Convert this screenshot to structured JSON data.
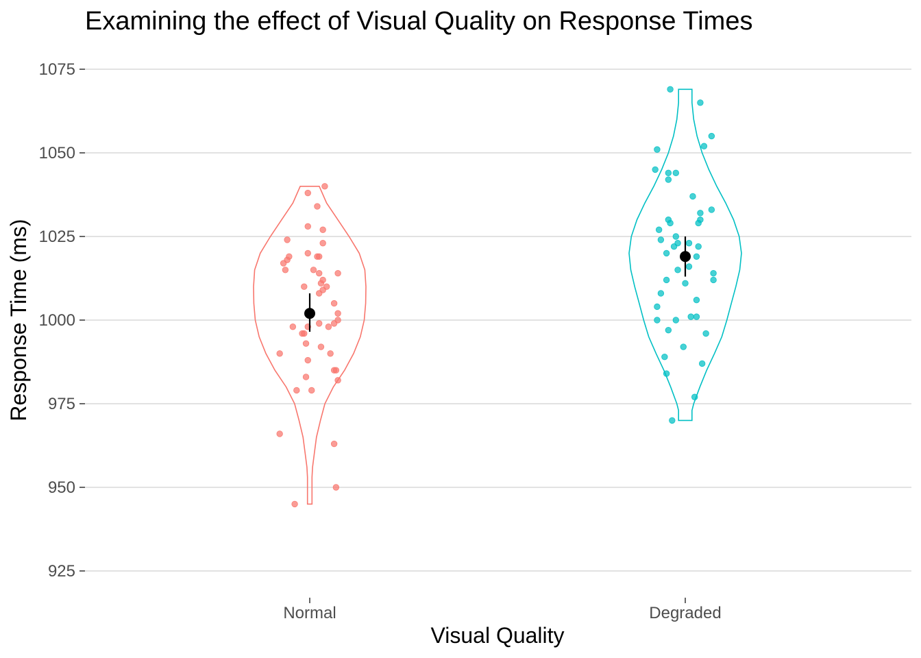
{
  "chart_data": {
    "type": "violin",
    "title": "Examining the effect of Visual Quality on Response Times",
    "xlabel": "Visual Quality",
    "ylabel": "Response Time (ms)",
    "ylim": [
      918,
      1081
    ],
    "yticks": [
      925,
      950,
      975,
      1000,
      1025,
      1050,
      1075
    ],
    "grid": true,
    "legend": "none",
    "categories": [
      "Normal",
      "Degraded"
    ],
    "series": [
      {
        "color": "#F8766D",
        "mean": 1002,
        "ci": [
          996.5,
          1008
        ],
        "violin": [
          [
            945,
            0.04
          ],
          [
            947,
            0.04
          ],
          [
            950,
            0.04
          ],
          [
            953,
            0.04
          ],
          [
            956,
            0.05
          ],
          [
            960,
            0.08
          ],
          [
            965,
            0.12
          ],
          [
            970,
            0.19
          ],
          [
            975,
            0.27
          ],
          [
            980,
            0.42
          ],
          [
            985,
            0.62
          ],
          [
            990,
            0.78
          ],
          [
            995,
            0.9
          ],
          [
            1000,
            0.97
          ],
          [
            1005,
            0.995
          ],
          [
            1010,
            1.0
          ],
          [
            1015,
            0.98
          ],
          [
            1020,
            0.88
          ],
          [
            1025,
            0.7
          ],
          [
            1030,
            0.5
          ],
          [
            1035,
            0.3
          ],
          [
            1040,
            0.17
          ]
        ],
        "points": [
          [
            -0.04,
            945
          ],
          [
            0.04,
            1040
          ],
          [
            -0.005,
            1038
          ],
          [
            0.02,
            1034
          ],
          [
            0.035,
            1027
          ],
          [
            -0.005,
            1028
          ],
          [
            -0.06,
            1024
          ],
          [
            0.035,
            1023
          ],
          [
            -0.005,
            1020
          ],
          [
            -0.055,
            1019
          ],
          [
            -0.06,
            1018
          ],
          [
            -0.07,
            1017
          ],
          [
            0.02,
            1019
          ],
          [
            0.025,
            1019
          ],
          [
            -0.065,
            1015
          ],
          [
            0.01,
            1015
          ],
          [
            0.025,
            1014
          ],
          [
            0.075,
            1014
          ],
          [
            0.035,
            1012
          ],
          [
            0.03,
            1011
          ],
          [
            0.045,
            1010
          ],
          [
            0.035,
            1009
          ],
          [
            -0.015,
            1010
          ],
          [
            0.025,
            1008
          ],
          [
            0.065,
            1005
          ],
          [
            0.075,
            1002
          ],
          [
            0.075,
            1000
          ],
          [
            0.065,
            999
          ],
          [
            0.025,
            999
          ],
          [
            -0.045,
            998
          ],
          [
            -0.005,
            998
          ],
          [
            0.05,
            998
          ],
          [
            -0.015,
            996
          ],
          [
            -0.02,
            996
          ],
          [
            -0.01,
            993
          ],
          [
            0.03,
            992
          ],
          [
            0.055,
            990
          ],
          [
            -0.08,
            990
          ],
          [
            -0.005,
            988
          ],
          [
            0.065,
            985
          ],
          [
            0.07,
            985
          ],
          [
            0.075,
            982
          ],
          [
            -0.01,
            983
          ],
          [
            0.005,
            979
          ],
          [
            -0.035,
            979
          ],
          [
            0.065,
            963
          ],
          [
            -0.08,
            966
          ],
          [
            0.07,
            950
          ]
        ]
      },
      {
        "color": "#00BFC4",
        "mean": 1019,
        "ci": [
          1013,
          1025
        ],
        "violin": [
          [
            970,
            0.12
          ],
          [
            973,
            0.12
          ],
          [
            975,
            0.15
          ],
          [
            980,
            0.26
          ],
          [
            985,
            0.38
          ],
          [
            990,
            0.52
          ],
          [
            995,
            0.65
          ],
          [
            1000,
            0.74
          ],
          [
            1005,
            0.82
          ],
          [
            1010,
            0.9
          ],
          [
            1015,
            0.97
          ],
          [
            1020,
            1.0
          ],
          [
            1025,
            0.96
          ],
          [
            1030,
            0.86
          ],
          [
            1035,
            0.72
          ],
          [
            1040,
            0.56
          ],
          [
            1045,
            0.42
          ],
          [
            1050,
            0.3
          ],
          [
            1055,
            0.21
          ],
          [
            1060,
            0.15
          ],
          [
            1065,
            0.12
          ],
          [
            1069,
            0.12
          ]
        ],
        "points": [
          [
            -0.04,
            1069
          ],
          [
            0.04,
            1065
          ],
          [
            0.07,
            1055
          ],
          [
            0.05,
            1052
          ],
          [
            -0.075,
            1051
          ],
          [
            -0.08,
            1045
          ],
          [
            -0.025,
            1044
          ],
          [
            -0.045,
            1044
          ],
          [
            -0.045,
            1042
          ],
          [
            0.02,
            1037
          ],
          [
            0.07,
            1033
          ],
          [
            0.04,
            1032
          ],
          [
            0.04,
            1030
          ],
          [
            0.035,
            1029
          ],
          [
            -0.045,
            1030
          ],
          [
            -0.04,
            1029
          ],
          [
            -0.07,
            1027
          ],
          [
            -0.025,
            1025
          ],
          [
            -0.065,
            1024
          ],
          [
            -0.02,
            1023
          ],
          [
            0.01,
            1023
          ],
          [
            0.035,
            1022
          ],
          [
            -0.03,
            1022
          ],
          [
            -0.05,
            1020
          ],
          [
            0.03,
            1019
          ],
          [
            0.075,
            1014
          ],
          [
            0.075,
            1012
          ],
          [
            -0.02,
            1015
          ],
          [
            0.01,
            1016
          ],
          [
            -0.05,
            1012
          ],
          [
            0.0,
            1011
          ],
          [
            -0.065,
            1008
          ],
          [
            0.03,
            1006
          ],
          [
            -0.075,
            1004
          ],
          [
            0.03,
            1001
          ],
          [
            0.015,
            1001
          ],
          [
            -0.075,
            1000
          ],
          [
            -0.025,
            1000
          ],
          [
            -0.045,
            997
          ],
          [
            0.055,
            996
          ],
          [
            -0.005,
            992
          ],
          [
            -0.055,
            989
          ],
          [
            0.045,
            987
          ],
          [
            -0.05,
            984
          ],
          [
            0.025,
            977
          ],
          [
            -0.035,
            970
          ]
        ]
      }
    ]
  }
}
